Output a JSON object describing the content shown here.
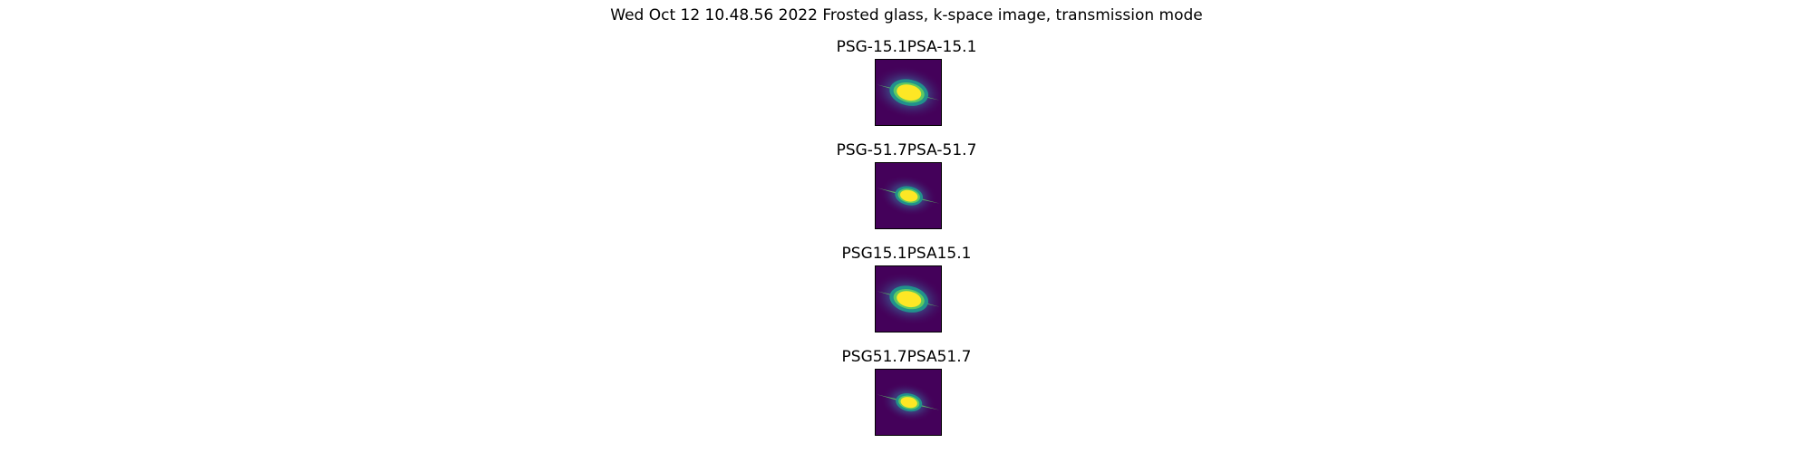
{
  "figure": {
    "suptitle": "Wed Oct 12 10.48.56 2022 Frosted glass, k-space image, transmission mode",
    "colormap": {
      "background": "#44015a",
      "mid_low": "#3b528b",
      "mid": "#21918c",
      "mid_high": "#5ec962",
      "high": "#fde725"
    },
    "panels": [
      {
        "title": "PSG-15.1PSA-15.1",
        "blob_strength": 1.0
      },
      {
        "title": "PSG-51.7PSA-51.7",
        "blob_strength": 0.72
      },
      {
        "title": "PSG15.1PSA15.1",
        "blob_strength": 1.0
      },
      {
        "title": "PSG51.7PSA51.7",
        "blob_strength": 0.68
      }
    ]
  }
}
